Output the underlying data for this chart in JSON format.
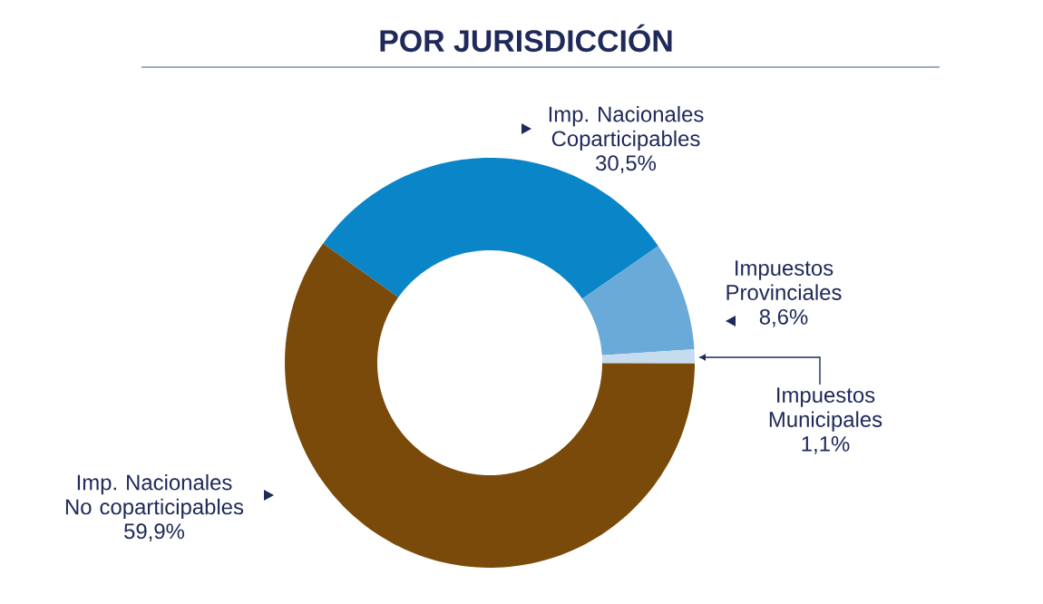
{
  "chart_data": {
    "type": "donut",
    "title": "POR JURISDICCIÓN",
    "categories": [
      "Imp. Nacionales Coparticipables",
      "Impuestos Provinciales",
      "Impuestos Municipales",
      "Imp. Nacionales No coparticipables"
    ],
    "values": [
      30.5,
      8.6,
      1.1,
      59.9
    ],
    "value_labels": [
      "30,5%",
      "8,6%",
      "1,1%",
      "59,9%"
    ],
    "colors": [
      "#0a86c8",
      "#6aaad8",
      "#c5dcef",
      "#7a4a0a"
    ]
  }
}
